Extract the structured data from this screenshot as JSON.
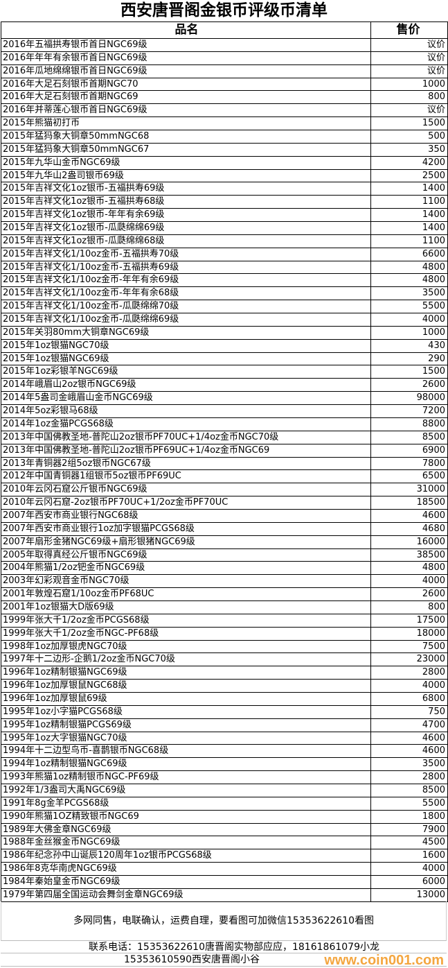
{
  "title": "西安唐晋阁金银币评级币清单",
  "columns": {
    "name": "品名",
    "price": "售价"
  },
  "rows": [
    [
      "2016年五福拱寿银币首日NGC69级",
      "议价"
    ],
    [
      "2016年年年有余银币首日NGC69级",
      "议价"
    ],
    [
      "2016年瓜地绵绵银币首日NGC69级",
      "议价"
    ],
    [
      "2016年大足石刻银币首期NGC70",
      "1000"
    ],
    [
      "2016年大足石刻银币首期NGC69",
      "800"
    ],
    [
      "2016年并蒂莲心银币首日NGC69级",
      "议价"
    ],
    [
      "2015年熊猫初打币",
      "1500"
    ],
    [
      "2015年猛犸象大铜章50mmNGC68",
      "500"
    ],
    [
      "2015年猛犸象大铜章50mmNGC67",
      "350"
    ],
    [
      "2015年九华山金币NGC69级",
      "4200"
    ],
    [
      "2015年九华山2盎司银币69级",
      "2500"
    ],
    [
      "2015年吉祥文化1oz银币-五福拱寿69级",
      "1400"
    ],
    [
      "2015年吉祥文化1oz银币-五福拱寿68级",
      "1100"
    ],
    [
      "2015年吉祥文化1oz银币-年年有余69级",
      "1400"
    ],
    [
      "2015年吉祥文化1oz银币-瓜瓞绵绵69级",
      "1400"
    ],
    [
      "2015年吉祥文化1oz银币-瓜瓞绵绵68级",
      "1100"
    ],
    [
      "2015年吉祥文化1/10oz金币-五福拱寿70级",
      "6600"
    ],
    [
      "2015年吉祥文化1/10oz金币-五福拱寿69级",
      "4800"
    ],
    [
      "2015年吉祥文化1/10oz金币-年年有余69级",
      "4800"
    ],
    [
      "2015年吉祥文化1/10oz金币-年年有余68级",
      "3500"
    ],
    [
      "2015年吉祥文化1/10oz金币-瓜瓞绵绵70级",
      "5500"
    ],
    [
      "2015年吉祥文化1/10oz金币-瓜瓞绵绵69级",
      "4000"
    ],
    [
      "2015年关羽80mm大铜章NGC69级",
      "1000"
    ],
    [
      "2015年1oz银猫NGC70级",
      "430"
    ],
    [
      "2015年1oz银猫NGC69级",
      "290"
    ],
    [
      "2015年1oz彩银羊NGC69级",
      "1500"
    ],
    [
      "2014年峨眉山2oz银币NGC69级",
      "2600"
    ],
    [
      "2014年5盎司金峨眉山金币NGC69级",
      "98000"
    ],
    [
      "2014年5oz彩银马68级",
      "7200"
    ],
    [
      "2014年1oz金猫PCGS68级",
      "8800"
    ],
    [
      "2013年中国佛教圣地-普陀山2oz银币PF70UC+1/4oz金币NGC70级",
      "8500"
    ],
    [
      "2013年中国佛教圣地-普陀山2oz银币PF69UC+1/4oz金币NGC69",
      "6900"
    ],
    [
      "2013年青铜器2组5oz银币NGC67级",
      "7800"
    ],
    [
      "2012年中国青铜器1组银币5oz银币PF69UC",
      "6500"
    ],
    [
      "2010年云冈石窟公斤银币NGC69级",
      "31000"
    ],
    [
      "2010年云冈石窟-2oz银币PF70UC+1/2oz金币PF70UC",
      "18500"
    ],
    [
      "2007年西安市商业银行NGC68级",
      "4600"
    ],
    [
      "2007年西安市商业银行1oz加字银猫PCGS68级",
      "4680"
    ],
    [
      "2007年扇形金猪NGC69级+扇形银猪NGC69级",
      "16000"
    ],
    [
      "2005年取得真经公斤银币NGC69级",
      "38500"
    ],
    [
      "2004年熊猫1/2oz钯金币NGC69级",
      "4800"
    ],
    [
      "2003年幻彩观音金币NGC70级",
      "4000"
    ],
    [
      "2001年敦煌石窟1/10oz金币PF68UC",
      "2600"
    ],
    [
      "2001年1oz银猫大D版69级",
      "800"
    ],
    [
      "1999年张大千1/2oz金币PCGS68级",
      "17500"
    ],
    [
      "1999年张大千1/2oz金币NGC-PF68级",
      "18000"
    ],
    [
      "1998年1oz加厚银虎NGC70级",
      "7500"
    ],
    [
      "1997年十二边形-企鹅1/2oz金币NGC70级",
      "23000"
    ],
    [
      "1996年1oz精制银猫NGC69级",
      "2800"
    ],
    [
      "1996年1oz加厚银鼠NGC68级",
      "4000"
    ],
    [
      "1996年1oz加厚银鼠69级",
      "6800"
    ],
    [
      "1995年1oz小字猫PCGS68级",
      "750"
    ],
    [
      "1995年1oz精制银猫PCGS69级",
      "4700"
    ],
    [
      "1995年1oz大字银猫NGC70级",
      "4600"
    ],
    [
      "1994年十二边型鸟币-喜鹊银币NGC68级",
      "4600"
    ],
    [
      "1994年1oz精制银猫NGC69级",
      "3500"
    ],
    [
      "1993年熊猫1oz精制银币NGC-PF69级",
      "2800"
    ],
    [
      "1992年1/3盎司大禹NGC69级",
      "8500"
    ],
    [
      "1991年8g金羊PCGS68级",
      "5500"
    ],
    [
      "1990年熊猫1OZ精致银币NGC69",
      "1800"
    ],
    [
      "1989年大佛金章NGC69级",
      "7900"
    ],
    [
      "1988年金丝猴金币NGC69级",
      "4500"
    ],
    [
      "1986年纪念孙中山诞辰120周年1oz银币PCGS68级",
      "1600"
    ],
    [
      "1986年8克华南虎NGC69级",
      "4000"
    ],
    [
      "1984年秦始皇金币NGC69级",
      "6000"
    ],
    [
      "1979年第四届全国运动会舞剑金章NGC69级",
      "13000"
    ]
  ],
  "footer": {
    "note": "多网同售，电联确认，运费自理，要看图可加微信15353622610看图",
    "contact1": "联系电话：15353622610唐晋阁实物部应应，18161861079小龙",
    "contact2": "15353610590西安唐晋阁小谷"
  },
  "watermark": "www.coin001.com"
}
